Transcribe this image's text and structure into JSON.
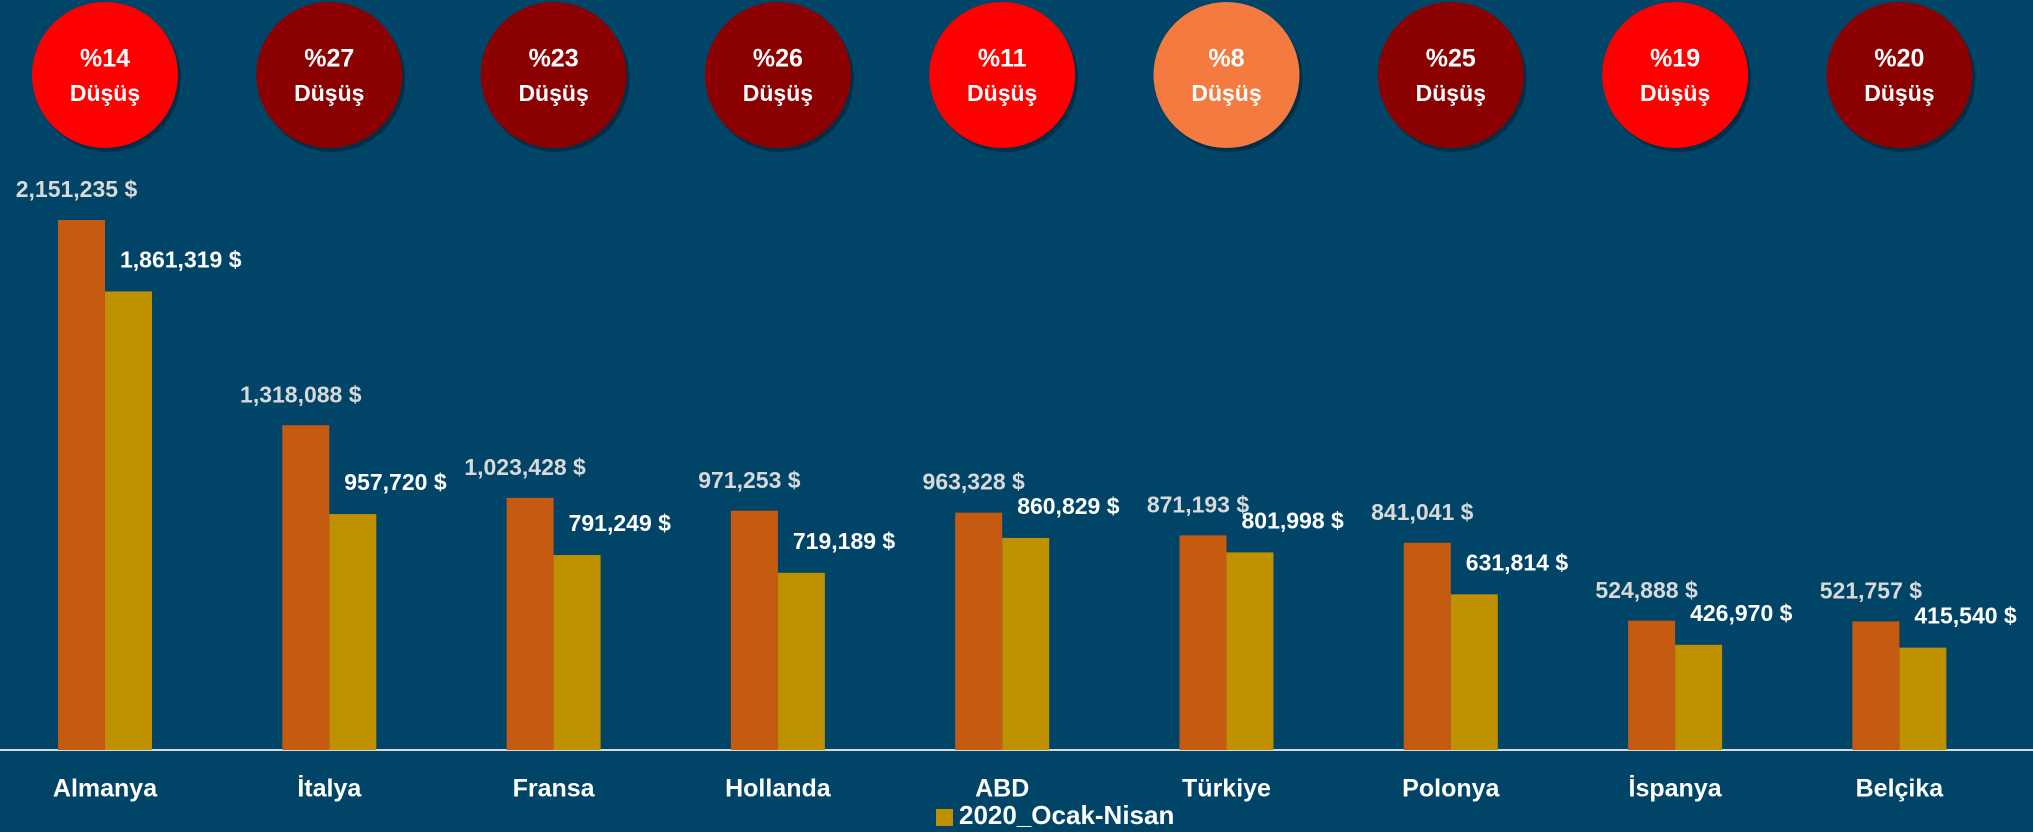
{
  "chart_data": {
    "type": "bar",
    "categories": [
      "Almanya",
      "İtalya",
      "Fransa",
      "Hollanda",
      "ABD",
      "Türkiye",
      "Polonya",
      "İspanya",
      "Belçika"
    ],
    "series": [
      {
        "color": "#c55a11",
        "values": [
          2151235,
          1318088,
          1023428,
          971253,
          963328,
          871193,
          841041,
          524888,
          521757
        ],
        "value_labels": [
          "2,151,235 $",
          "1,318,088 $",
          "1,023,428 $",
          "971,253 $",
          "963,328 $",
          "871,193 $",
          "841,041 $",
          "524,888 $",
          "521,757 $"
        ]
      },
      {
        "name": "2020_Ocak-Nisan",
        "color": "#bf9000",
        "values": [
          1861319,
          957720,
          791249,
          719189,
          860829,
          801998,
          631814,
          426970,
          415540
        ],
        "value_labels": [
          "1,861,319 $",
          "957,720 $",
          "791,249 $",
          "719,189 $",
          "860,829 $",
          "801,998 $",
          "631,814 $",
          "426,970 $",
          "415,540 $"
        ]
      }
    ],
    "badges": [
      {
        "text": "%14",
        "label": "Düşüş",
        "color": "#ff0000"
      },
      {
        "text": "%27",
        "label": "Düşüş",
        "color": "#8b0000"
      },
      {
        "text": "%23",
        "label": "Düşüş",
        "color": "#8b0000"
      },
      {
        "text": "%26",
        "label": "Düşüş",
        "color": "#8b0000"
      },
      {
        "text": "%11",
        "label": "Düşüş",
        "color": "#ff0000"
      },
      {
        "text": "%8",
        "label": "Düşüş",
        "color": "#f47a40"
      },
      {
        "text": "%25",
        "label": "Düşüş",
        "color": "#8b0000"
      },
      {
        "text": "%19",
        "label": "Düşüş",
        "color": "#ff0000"
      },
      {
        "text": "%20",
        "label": "Düşüş",
        "color": "#8b0000"
      }
    ],
    "legend": "bottom"
  }
}
